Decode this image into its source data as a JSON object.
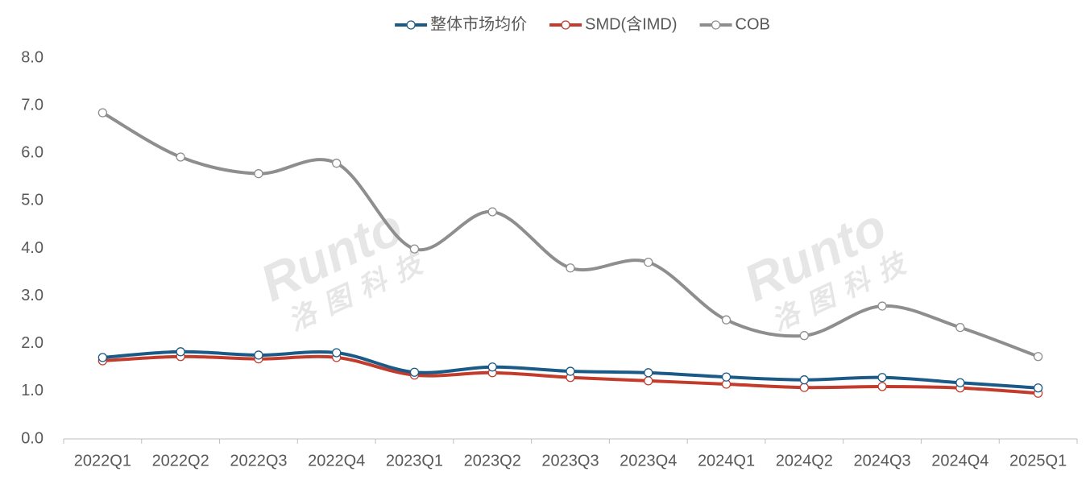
{
  "chart_data": {
    "type": "line",
    "categories": [
      "2022Q1",
      "2022Q2",
      "2022Q3",
      "2022Q4",
      "2023Q1",
      "2023Q2",
      "2023Q3",
      "2023Q4",
      "2024Q1",
      "2024Q2",
      "2024Q3",
      "2024Q4",
      "2025Q1"
    ],
    "series": [
      {
        "name": "整体市场均价",
        "color": "#1b5a86",
        "values": [
          1.71,
          1.83,
          1.76,
          1.81,
          1.4,
          1.51,
          1.42,
          1.39,
          1.3,
          1.24,
          1.29,
          1.18,
          1.07
        ]
      },
      {
        "name": "SMD(含IMD)",
        "color": "#c33b2b",
        "values": [
          1.64,
          1.73,
          1.68,
          1.71,
          1.34,
          1.39,
          1.29,
          1.22,
          1.15,
          1.08,
          1.1,
          1.07,
          0.96
        ]
      },
      {
        "name": "COB",
        "color": "#8e8e8e",
        "values": [
          6.85,
          5.92,
          5.57,
          5.79,
          3.99,
          4.77,
          3.59,
          3.71,
          2.5,
          2.17,
          2.79,
          2.34,
          1.73
        ]
      }
    ],
    "ylim": [
      0,
      8
    ],
    "yticks": [
      {
        "value": 0,
        "label": "0.0"
      },
      {
        "value": 1,
        "label": "1.0"
      },
      {
        "value": 2,
        "label": "2.0"
      },
      {
        "value": 3,
        "label": "3.0"
      },
      {
        "value": 4,
        "label": "4.0"
      },
      {
        "value": 5,
        "label": "5.0"
      },
      {
        "value": 6,
        "label": "6.0"
      },
      {
        "value": 7,
        "label": "7.0"
      },
      {
        "value": 8,
        "label": "8.0"
      }
    ],
    "grid": false,
    "legend": "top",
    "smooth": true,
    "watermark": {
      "brand": "Runto",
      "name": "洛图科技"
    }
  }
}
